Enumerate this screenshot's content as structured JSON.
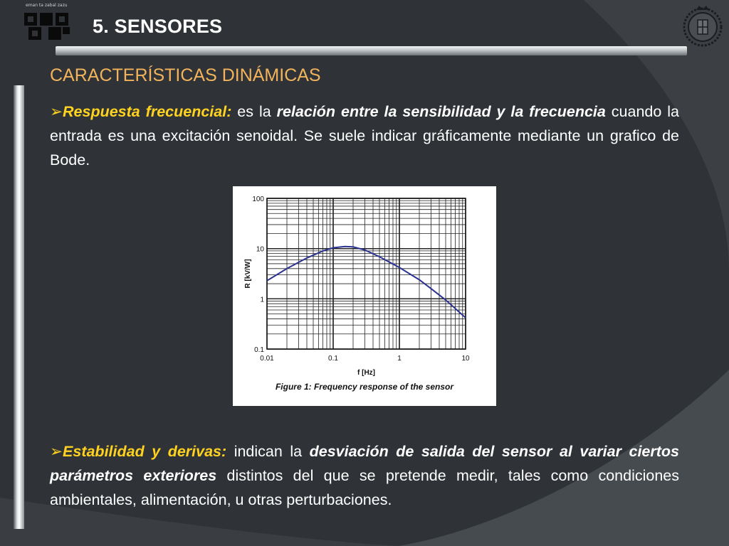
{
  "header": {
    "title": "5. SENSORES",
    "left_logo_text": "eman ta zabal zazu",
    "right_logo": "university-seal"
  },
  "section_title": "CARACTERÍSTICAS DINÁMICAS",
  "bullet_symbol": "➢",
  "paragraph1": {
    "term": "Respuesta frecuencial:",
    "text1": " es la ",
    "emph": "relación entre la sensibilidad y la frecuencia",
    "text2": " cuando la entrada es una excitación senoidal. Se suele indicar gráficamente mediante un grafico de Bode."
  },
  "paragraph2": {
    "term": "Estabilidad y derivas:",
    "text1": " indican la ",
    "emph": "desviación de salida del sensor al variar ciertos parámetros exteriores",
    "text2": " distintos del que se pretende medir, tales como condiciones ambientales, alimentación, u otras perturbaciones."
  },
  "figure": {
    "caption": "Figure 1: Frequency response of the sensor"
  },
  "colors": {
    "background": "#2f3338",
    "accent_orange": "#f2b35a",
    "accent_yellow": "#ffd21f",
    "curve": "#2b3390"
  },
  "chart_data": {
    "type": "line",
    "title": "",
    "xlabel": "f [Hz]",
    "ylabel": "R [kV/W]",
    "xscale": "log",
    "yscale": "log",
    "xlim": [
      0.01,
      10
    ],
    "ylim": [
      0.1,
      100
    ],
    "x_tick_labels": [
      "0.01",
      "0.1",
      "1",
      "10"
    ],
    "y_tick_labels": [
      "0.1",
      "1",
      "10",
      "100"
    ],
    "x_ticks": [
      0.01,
      0.1,
      1,
      10
    ],
    "y_ticks": [
      0.1,
      1,
      10,
      100
    ],
    "grid": true,
    "series": [
      {
        "x": [
          0.01,
          0.02,
          0.04,
          0.07,
          0.1,
          0.15,
          0.2,
          0.3,
          0.5,
          1,
          2,
          3,
          5,
          10
        ],
        "values": [
          2.3,
          4.0,
          6.5,
          9.0,
          10.4,
          11.0,
          10.8,
          9.4,
          6.9,
          4.2,
          2.4,
          1.6,
          0.95,
          0.42
        ]
      }
    ]
  }
}
